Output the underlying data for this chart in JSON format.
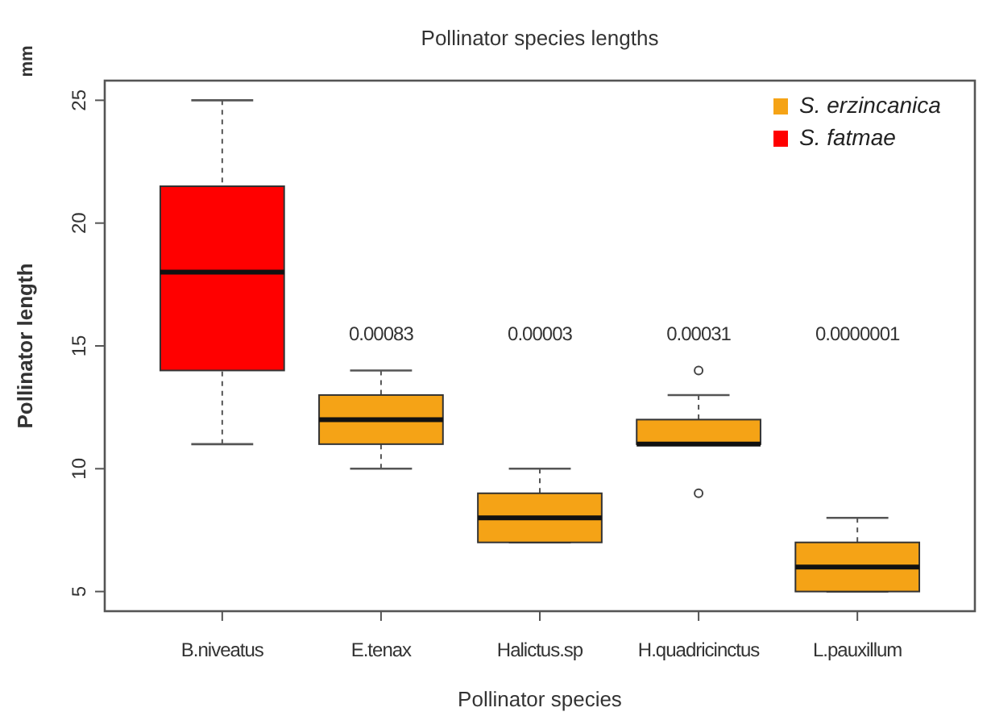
{
  "chart_data": {
    "type": "box",
    "title": "Pollinator species lengths",
    "xlabel": "Pollinator species",
    "ylabel": "Pollinator length",
    "categories": [
      "B.niveatus",
      "E.tenax",
      "Halictus.sp",
      "H.quadricinctus",
      "L.pauxillum"
    ],
    "series": [
      {
        "name": "S. erzincanica",
        "color": "#f5a316",
        "boxes": [
          null,
          {
            "low": 10,
            "q1": 11,
            "median": 12,
            "q3": 13,
            "high": 14
          },
          {
            "low": 7,
            "q1": 7,
            "median": 8,
            "q3": 9,
            "high": 10
          },
          {
            "low": 11,
            "q1": 11,
            "median": 11,
            "q3": 12,
            "high": 13,
            "outliers": [
              14,
              9
            ]
          },
          {
            "low": 5,
            "q1": 5,
            "median": 6,
            "q3": 7,
            "high": 8
          }
        ]
      },
      {
        "name": "S. fatmae",
        "color": "#ff0000",
        "boxes": [
          {
            "low": 11,
            "q1": 14,
            "median": 18,
            "q3": 21.5,
            "high": 25
          },
          null,
          null,
          null,
          null
        ]
      }
    ],
    "ylim": [
      4.2,
      25.8
    ],
    "yticks": [
      5,
      10,
      15,
      20,
      25
    ],
    "legend": "top right",
    "annotations": [
      "mm",
      "0.00083",
      "0.00003",
      "0.00031",
      "0.0000001"
    ]
  }
}
